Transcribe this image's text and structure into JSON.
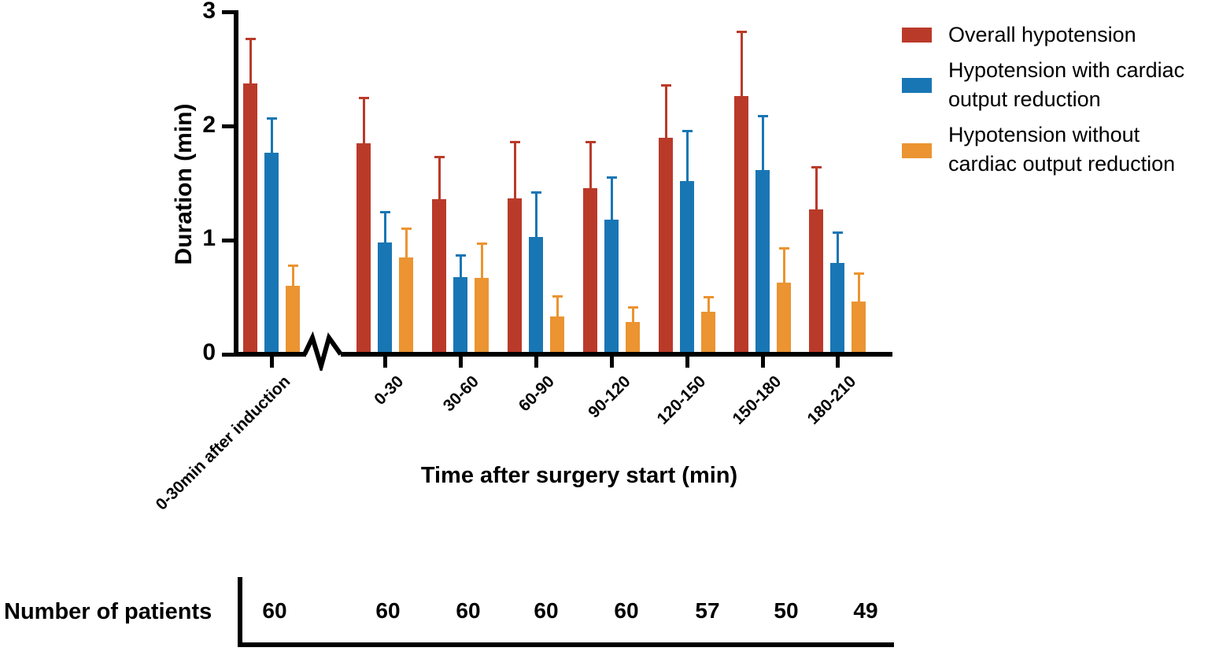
{
  "chart_data": {
    "type": "bar",
    "title": "",
    "xlabel": "Time after surgery start (min)",
    "ylabel": "Duration (min)",
    "ylim": [
      0,
      3
    ],
    "yticks": [
      0,
      1,
      2,
      3
    ],
    "grid": false,
    "x_axis_break": "zigzag break on baseline between first category and remaining categories",
    "legend_position": "top-right",
    "categories": [
      "0-30min after induction",
      "0-30",
      "30-60",
      "60-90",
      "90-120",
      "120-150",
      "150-180",
      "180-210"
    ],
    "series": [
      {
        "name": "Overall hypotension",
        "color": "#ba3a2a",
        "values": [
          2.38,
          1.85,
          1.36,
          1.37,
          1.46,
          1.9,
          2.27,
          1.27
        ],
        "errors_plus": [
          0.4,
          0.41,
          0.38,
          0.5,
          0.41,
          0.47,
          0.57,
          0.38
        ]
      },
      {
        "name": "Hypotension with cardiac output reduction",
        "color": "#1976b4",
        "values": [
          1.77,
          0.98,
          0.68,
          1.03,
          1.18,
          1.52,
          1.62,
          0.8
        ],
        "errors_plus": [
          0.31,
          0.28,
          0.2,
          0.4,
          0.38,
          0.45,
          0.48,
          0.28
        ]
      },
      {
        "name": "Hypotension without cardiac output reduction",
        "color": "#eb9431",
        "values": [
          0.6,
          0.85,
          0.67,
          0.33,
          0.28,
          0.37,
          0.63,
          0.46
        ],
        "errors_plus": [
          0.19,
          0.26,
          0.31,
          0.19,
          0.14,
          0.14,
          0.31,
          0.26
        ]
      }
    ],
    "patients_row": {
      "label": "Number of patients",
      "values": [
        60,
        60,
        60,
        60,
        60,
        57,
        50,
        49
      ]
    }
  },
  "legend": {
    "items": [
      {
        "color": "#ba3a2a",
        "lines": [
          "Overall hypotension"
        ]
      },
      {
        "color": "#1976b4",
        "lines": [
          "Hypotension with cardiac",
          "output reduction"
        ]
      },
      {
        "color": "#eb9431",
        "lines": [
          "Hypotension without",
          "cardiac output reduction"
        ]
      }
    ]
  }
}
